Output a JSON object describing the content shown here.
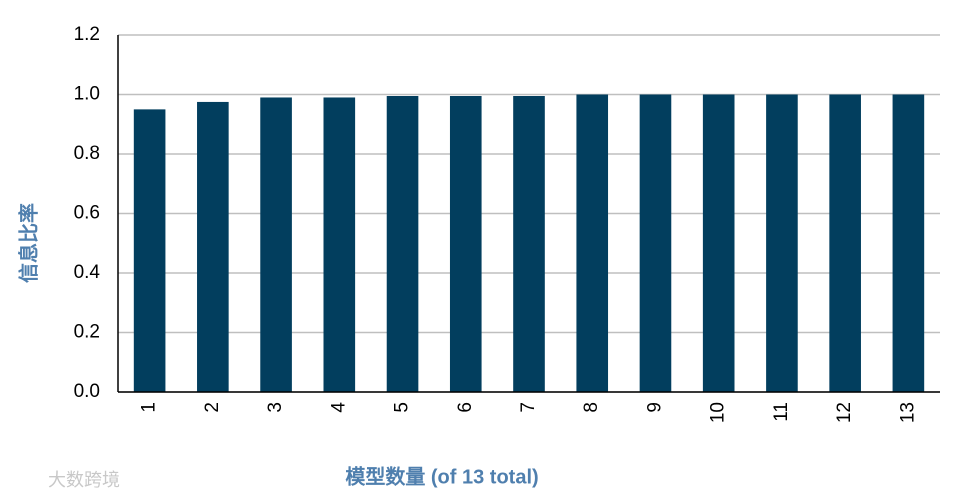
{
  "chart_data": {
    "type": "bar",
    "y_label": "信息比率",
    "x_label": "模型数量 (of 13 total)",
    "watermark": "大数跨境",
    "categories": [
      "1",
      "2",
      "3",
      "4",
      "5",
      "6",
      "7",
      "8",
      "9",
      "10",
      "11",
      "12",
      "13"
    ],
    "values": [
      0.95,
      0.975,
      0.99,
      0.99,
      0.995,
      0.995,
      0.995,
      1.0,
      1.0,
      1.0,
      1.0,
      1.0,
      1.0
    ],
    "color": "#023e5e",
    "ylim": [
      0,
      1.2
    ],
    "yticks": [
      {
        "value": 0,
        "label": "0.0"
      },
      {
        "value": 0.2,
        "label": "0.2"
      },
      {
        "value": 0.4,
        "label": "0.4"
      },
      {
        "value": 0.6,
        "label": "0.6"
      },
      {
        "value": 0.8,
        "label": "0.8"
      },
      {
        "value": 1.0,
        "label": "1.0"
      },
      {
        "value": 1.2,
        "label": "1.2"
      }
    ],
    "grid": true
  }
}
